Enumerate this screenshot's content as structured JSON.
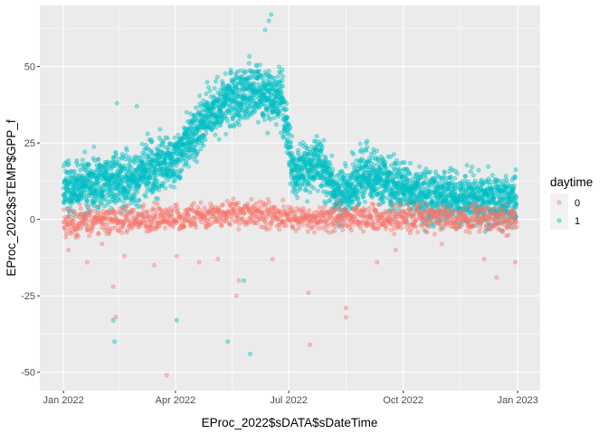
{
  "chart_data": {
    "type": "scatter",
    "xlabel": "EProc_2022$sDATA$sDateTime",
    "ylabel": "EProc_2022$sTEMP$GPP_f",
    "x_ticks": [
      {
        "label": "Jan 2022",
        "value": "2022-01-01"
      },
      {
        "label": "Apr 2022",
        "value": "2022-04-01"
      },
      {
        "label": "Jul 2022",
        "value": "2022-07-01"
      },
      {
        "label": "Oct 2022",
        "value": "2022-10-01"
      },
      {
        "label": "Jan 2023",
        "value": "2023-01-01"
      }
    ],
    "y_ticks": [
      -50,
      -25,
      0,
      25,
      50
    ],
    "xlim": [
      "2021-12-13",
      "2023-01-19"
    ],
    "ylim": [
      -56,
      70
    ],
    "grid": true,
    "legend": {
      "title": "daytime",
      "position": "right",
      "entries": [
        {
          "label": "0",
          "color": "#F8766D"
        },
        {
          "label": "1",
          "color": "#00BFC4"
        }
      ]
    },
    "series": [
      {
        "name": "0",
        "color": "#F8766D",
        "points": [
          [
            "2022-01-05",
            -10
          ],
          [
            "2022-01-12",
            -5
          ],
          [
            "2022-01-20",
            -14
          ],
          [
            "2022-02-01",
            -8
          ],
          [
            "2022-02-10",
            -22
          ],
          [
            "2022-02-12",
            -32
          ],
          [
            "2022-02-19",
            -12
          ],
          [
            "2022-03-15",
            -15
          ],
          [
            "2022-03-25",
            -51
          ],
          [
            "2022-04-02",
            -12
          ],
          [
            "2022-04-20",
            -14
          ],
          [
            "2022-05-05",
            -13
          ],
          [
            "2022-05-20",
            -25
          ],
          [
            "2022-05-22",
            -20
          ],
          [
            "2022-06-18",
            -13
          ],
          [
            "2022-07-17",
            -24
          ],
          [
            "2022-07-18",
            -41
          ],
          [
            "2022-08-16",
            -29
          ],
          [
            "2022-08-16",
            -32
          ],
          [
            "2022-09-10",
            -14
          ],
          [
            "2022-09-25",
            -10
          ],
          [
            "2022-11-01",
            -8
          ],
          [
            "2022-12-05",
            -13
          ],
          [
            "2022-12-15",
            -19
          ],
          [
            "2022-12-30",
            -14
          ]
        ],
        "band": {
          "samples_per_week": 26,
          "weekly_mean": [
            [
              "2022-01-01",
              -1
            ],
            [
              "2022-02-15",
              0
            ],
            [
              "2022-03-15",
              0
            ],
            [
              "2022-04-15",
              1
            ],
            [
              "2022-05-15",
              2
            ],
            [
              "2022-06-15",
              1
            ],
            [
              "2022-07-15",
              0
            ],
            [
              "2022-08-15",
              1
            ],
            [
              "2022-09-15",
              0
            ],
            [
              "2022-10-15",
              1
            ],
            [
              "2022-11-15",
              0
            ],
            [
              "2022-12-31",
              0
            ]
          ],
          "spread": 6
        }
      },
      {
        "name": "1",
        "color": "#00BFC4",
        "points": [
          [
            "2022-02-13",
            38
          ],
          [
            "2022-03-01",
            37
          ],
          [
            "2022-06-15",
            65
          ],
          [
            "2022-06-17",
            67
          ],
          [
            "2022-06-12",
            62
          ],
          [
            "2022-02-10",
            -33
          ],
          [
            "2022-02-11",
            -40
          ],
          [
            "2022-04-02",
            -33
          ],
          [
            "2022-05-13",
            -40
          ],
          [
            "2022-05-31",
            -44
          ],
          [
            "2022-05-26",
            -20
          ]
        ],
        "band": {
          "samples_per_week": 70,
          "weekly_mean": [
            [
              "2022-01-01",
              10
            ],
            [
              "2022-02-01",
              12
            ],
            [
              "2022-03-01",
              14
            ],
            [
              "2022-04-01",
              20
            ],
            [
              "2022-04-20",
              30
            ],
            [
              "2022-05-10",
              38
            ],
            [
              "2022-06-01",
              42
            ],
            [
              "2022-06-25",
              40
            ],
            [
              "2022-07-05",
              15
            ],
            [
              "2022-07-25",
              18
            ],
            [
              "2022-08-10",
              8
            ],
            [
              "2022-09-01",
              15
            ],
            [
              "2022-09-20",
              12
            ],
            [
              "2022-10-15",
              8
            ],
            [
              "2022-11-15",
              7
            ],
            [
              "2022-12-31",
              6
            ]
          ],
          "spread": 12
        }
      }
    ]
  }
}
